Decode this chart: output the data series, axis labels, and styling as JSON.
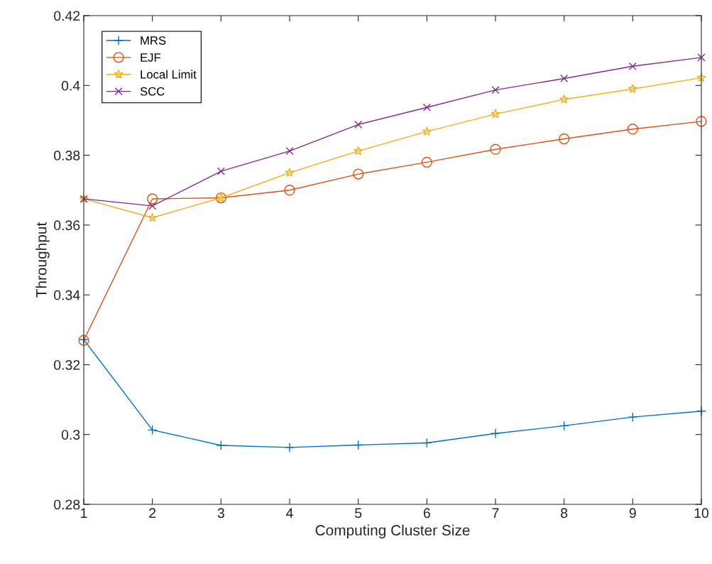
{
  "chart_data": {
    "type": "line",
    "xlabel": "Computing Cluster Size",
    "ylabel": "Throughput",
    "x": [
      1,
      2,
      3,
      4,
      5,
      6,
      7,
      8,
      9,
      10
    ],
    "series": [
      {
        "name": "MRS",
        "color": "#0072bd",
        "marker": "plus",
        "values": [
          0.3272,
          0.3013,
          0.2969,
          0.2963,
          0.297,
          0.2976,
          0.3003,
          0.3025,
          0.305,
          0.3067
        ]
      },
      {
        "name": "EJF",
        "color": "#d95319",
        "marker": "circle",
        "values": [
          0.327,
          0.3675,
          0.3678,
          0.37,
          0.3746,
          0.378,
          0.3817,
          0.3847,
          0.3875,
          0.3897
        ]
      },
      {
        "name": "Local Limit",
        "color": "#edb120",
        "marker": "star",
        "values": [
          0.3675,
          0.3621,
          0.3678,
          0.375,
          0.3812,
          0.3868,
          0.3918,
          0.396,
          0.399,
          0.4022
        ]
      },
      {
        "name": "SCC",
        "color": "#7e2f8e",
        "marker": "cross",
        "values": [
          0.3675,
          0.3655,
          0.3754,
          0.3812,
          0.3888,
          0.3937,
          0.3987,
          0.402,
          0.4055,
          0.408
        ]
      }
    ],
    "xlim": [
      1,
      10
    ],
    "xticks": [
      1,
      2,
      3,
      4,
      5,
      6,
      7,
      8,
      9,
      10
    ],
    "ylim": [
      0.28,
      0.42
    ],
    "yticks": [
      {
        "value": 0.28,
        "label": "0.28"
      },
      {
        "value": 0.3,
        "label": "0.3"
      },
      {
        "value": 0.32,
        "label": "0.32"
      },
      {
        "value": 0.34,
        "label": "0.34"
      },
      {
        "value": 0.36,
        "label": "0.36"
      },
      {
        "value": 0.38,
        "label": "0.38"
      },
      {
        "value": 0.4,
        "label": "0.4"
      },
      {
        "value": 0.42,
        "label": "0.42"
      }
    ],
    "grid": false,
    "legend": "top left",
    "line_style": "solid"
  }
}
